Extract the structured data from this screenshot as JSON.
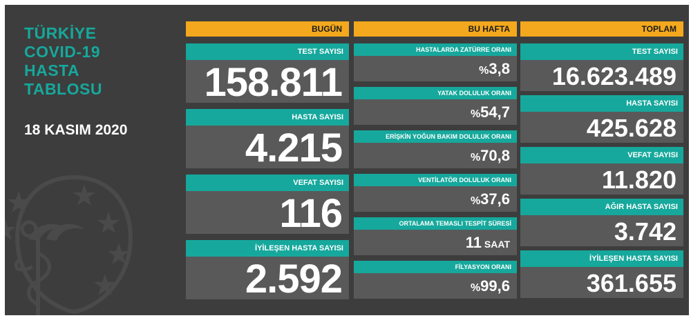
{
  "title_lines": [
    "TÜRKİYE",
    "COVID-19",
    "HASTA",
    "TABLOSU"
  ],
  "date": "18 KASIM 2020",
  "colors": {
    "background": "#3d3d3d",
    "teal": "#16a89c",
    "orange": "#f4a81d",
    "value_bg": "#595959"
  },
  "today": {
    "header": "BUGÜN",
    "items": [
      {
        "label": "TEST SAYISI",
        "value": "158.811"
      },
      {
        "label": "HASTA SAYISI",
        "value": "4.215"
      },
      {
        "label": "VEFAT SAYISI",
        "value": "116"
      },
      {
        "label": "İYİLEŞEN HASTA SAYISI",
        "value": "2.592"
      }
    ]
  },
  "week": {
    "header": "BU HAFTA",
    "items": [
      {
        "label": "HASTALARDA ZATÜRRE ORANI",
        "prefix": "%",
        "value": "3,8"
      },
      {
        "label": "YATAK DOLULUK ORANI",
        "prefix": "%",
        "value": "54,7"
      },
      {
        "label": "ERİŞKİN YOĞUN BAKIM DOLULUK ORANI",
        "prefix": "%",
        "value": "70,8"
      },
      {
        "label": "VENTİLATÖR DOLULUK ORANI",
        "prefix": "%",
        "value": "37,6"
      },
      {
        "label": "ORTALAMA TEMASLI TESPİT SÜRESİ",
        "value": "11",
        "unit": " SAAT"
      },
      {
        "label": "FİLYASYON ORANI",
        "prefix": "%",
        "value": "99,6"
      }
    ]
  },
  "total": {
    "header": "TOPLAM",
    "items": [
      {
        "label": "TEST SAYISI",
        "value": "16.623.489"
      },
      {
        "label": "HASTA SAYISI",
        "value": "425.628"
      },
      {
        "label": "VEFAT SAYISI",
        "value": "11.820"
      },
      {
        "label": "AĞIR HASTA SAYISI",
        "value": "3.742"
      },
      {
        "label": "İYİLEŞEN HASTA SAYISI",
        "value": "361.655"
      }
    ]
  }
}
